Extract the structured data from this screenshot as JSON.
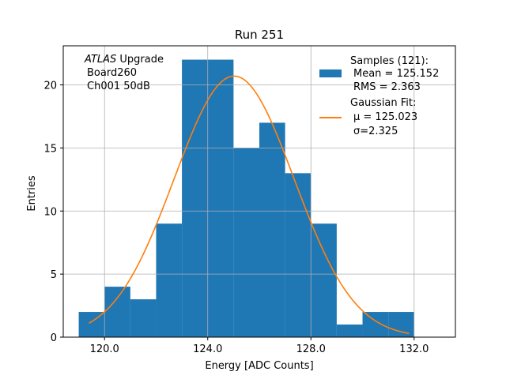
{
  "chart_data": {
    "type": "bar",
    "title": "Run 251",
    "xlabel": "Energy [ADC Counts]",
    "ylabel": "Entries",
    "xlim": [
      118.4,
      133.6
    ],
    "ylim": [
      0,
      23.1
    ],
    "x_ticks": [
      120,
      124,
      128,
      132
    ],
    "x_tick_labels": [
      "120.0",
      "124.0",
      "128.0",
      "132.0"
    ],
    "y_ticks": [
      0,
      5,
      10,
      15,
      20
    ],
    "y_tick_labels": [
      "0",
      "5",
      "10",
      "15",
      "20"
    ],
    "grid": true,
    "bin_edges": [
      119,
      120,
      121,
      122,
      123,
      124,
      125,
      126,
      127,
      128,
      129,
      130,
      131,
      132
    ],
    "counts": [
      2,
      4,
      3,
      9,
      22,
      22,
      15,
      17,
      13,
      9,
      1,
      2,
      2
    ],
    "fit": {
      "type": "gaussian",
      "mu": 125.023,
      "sigma": 2.325,
      "amplitude": 20.7,
      "x_range": [
        119.4,
        131.8
      ]
    },
    "annotation": {
      "italic": "ATLAS",
      "first_rest": " Upgrade",
      "line2": "Board260",
      "line3": "Ch001 50dB"
    },
    "legend": {
      "placement": "top-right",
      "entries": [
        {
          "kind": "bar",
          "line1": "Samples (121):",
          "line2": "Mean = 125.152",
          "line3": "RMS = 2.363"
        },
        {
          "kind": "line",
          "line1": "Gaussian Fit:",
          "line2": "μ = 125.023",
          "line3": "σ=2.325"
        }
      ]
    },
    "colors": {
      "bars": "#1f77b4",
      "fit_line": "#ff7f0e",
      "grid": "#b0b0b0"
    }
  }
}
